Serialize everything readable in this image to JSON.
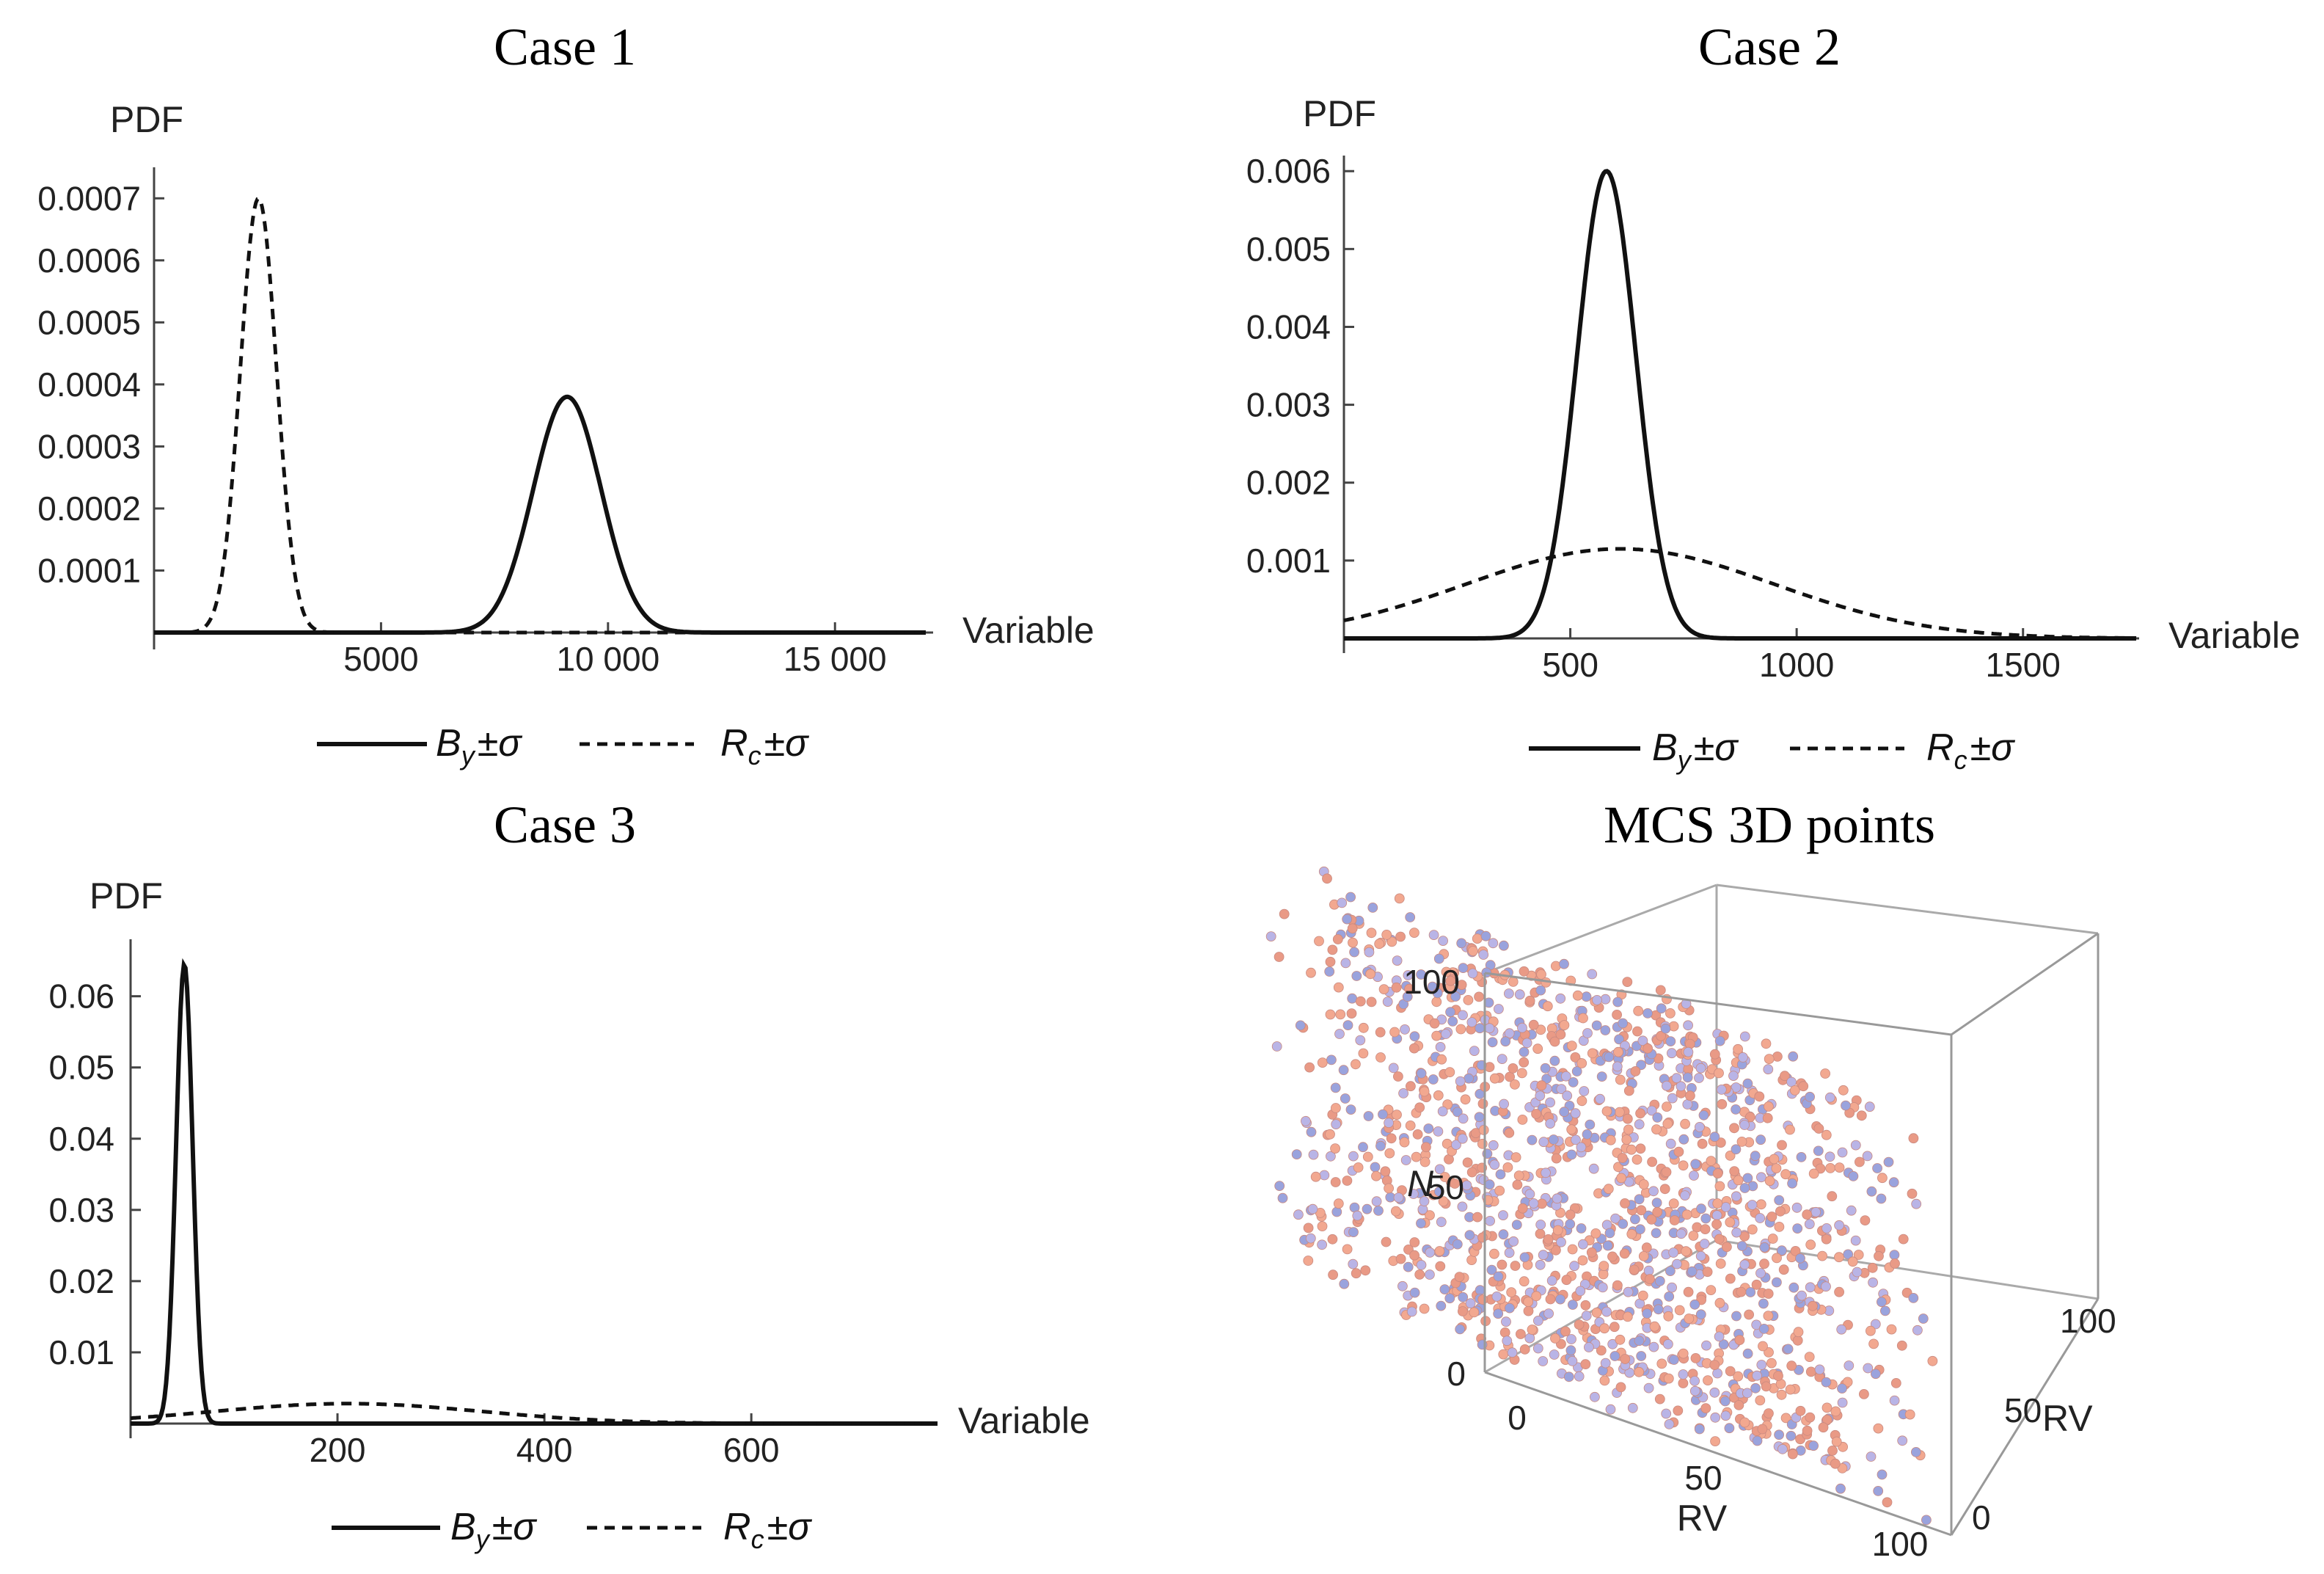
{
  "chart_data": [
    {
      "type": "line",
      "title": "Case 1",
      "ylabel": "PDF",
      "xlabel": "Variable",
      "xlim": [
        0,
        17000
      ],
      "ylim": [
        0,
        0.00075
      ],
      "x_ticks": [
        5000,
        10000,
        15000
      ],
      "x_tick_labels": [
        "5000",
        "10 000",
        "15 000"
      ],
      "y_ticks": [
        0.0001,
        0.0002,
        0.0003,
        0.0004,
        0.0005,
        0.0006,
        0.0007
      ],
      "y_tick_labels": [
        "0.0001",
        "0.0002",
        "0.0003",
        "0.0004",
        "0.0005",
        "0.0006",
        "0.0007"
      ],
      "series": [
        {
          "name": "B_y ± σ",
          "style": "solid",
          "distribution": "normal",
          "mean": 9100,
          "peak": 0.00038
        },
        {
          "name": "R_c ± σ",
          "style": "dashed",
          "distribution": "normal",
          "mean": 2300,
          "peak": 0.0007
        }
      ],
      "legend": {
        "items": [
          {
            "base": "B",
            "sub": "y",
            "suffix": "±σ",
            "style": "solid"
          },
          {
            "base": "R",
            "sub": "c",
            "suffix": "±σ",
            "style": "dashed"
          }
        ],
        "position": "bottom"
      }
    },
    {
      "type": "line",
      "title": "Case 2",
      "ylabel": "PDF",
      "xlabel": "Variable",
      "xlim": [
        0,
        1750
      ],
      "ylim": [
        0,
        0.0062
      ],
      "x_ticks": [
        500,
        1000,
        1500
      ],
      "x_tick_labels": [
        "500",
        "1000",
        "1500"
      ],
      "y_ticks": [
        0.001,
        0.002,
        0.003,
        0.004,
        0.005,
        0.006
      ],
      "y_tick_labels": [
        "0.001",
        "0.002",
        "0.003",
        "0.004",
        "0.005",
        "0.006"
      ],
      "series": [
        {
          "name": "B_y ± σ",
          "style": "solid",
          "distribution": "normal",
          "mean": 580,
          "peak": 0.006
        },
        {
          "name": "R_c ± σ",
          "style": "dashed",
          "distribution": "normal",
          "mean": 610,
          "peak": 0.00115
        }
      ],
      "legend": {
        "items": [
          {
            "base": "B",
            "sub": "y",
            "suffix": "±σ",
            "style": "solid"
          },
          {
            "base": "R",
            "sub": "c",
            "suffix": "±σ",
            "style": "dashed"
          }
        ],
        "position": "bottom"
      }
    },
    {
      "type": "line",
      "title": "Case 3",
      "ylabel": "PDF",
      "xlabel": "Variable",
      "xlim": [
        0,
        780
      ],
      "ylim": [
        0,
        0.068
      ],
      "x_ticks": [
        200,
        400,
        600
      ],
      "x_tick_labels": [
        "200",
        "400",
        "600"
      ],
      "y_ticks": [
        0.01,
        0.02,
        0.03,
        0.04,
        0.05,
        0.06
      ],
      "y_tick_labels": [
        "0.01",
        "0.02",
        "0.03",
        "0.04",
        "0.05",
        "0.06"
      ],
      "series": [
        {
          "name": "B_y ± σ",
          "style": "solid",
          "distribution": "normal",
          "mean": 52,
          "peak": 0.0645
        },
        {
          "name": "R_c ± σ",
          "style": "dashed",
          "distribution": "normal",
          "mean": 210,
          "peak": 0.0028
        }
      ],
      "legend": {
        "items": [
          {
            "base": "B",
            "sub": "y",
            "suffix": "±σ",
            "style": "solid"
          },
          {
            "base": "R",
            "sub": "c",
            "suffix": "±σ",
            "style": "dashed"
          }
        ],
        "position": "bottom"
      }
    },
    {
      "type": "scatter",
      "title": "MCS 3D points",
      "dimensions": 3,
      "xlabel": "RV",
      "ylabel": "RV",
      "zlabel": "N",
      "xlim": [
        0,
        100
      ],
      "ylim": [
        0,
        100
      ],
      "zlim": [
        0,
        100
      ],
      "x_tick_labels": [
        "0",
        "50",
        "100"
      ],
      "y_tick_labels": [
        "0",
        "50",
        "100"
      ],
      "z_tick_labels": [
        "0",
        "50",
        "100"
      ],
      "sample_count": 1500,
      "distribution": "uniform",
      "marker": "sphere",
      "colors": [
        "#f2a890",
        "#9aa3dd",
        "#e99a86",
        "#b9b4e6"
      ]
    }
  ]
}
